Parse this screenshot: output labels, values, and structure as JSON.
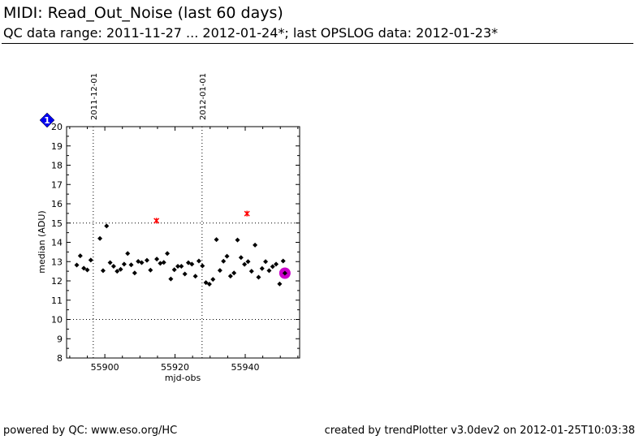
{
  "header": {
    "title": "MIDI: Read_Out_Noise (last 60 days)",
    "subtitle": "QC data range: 2011-11-27 ... 2012-01-24*; last OPSLOG data: 2012-01-23*"
  },
  "footer": {
    "left": "powered by QC: www.eso.org/HC",
    "right": "created by trendPlotter v3.0dev2 on 2012-01-25T10:03:38"
  },
  "colors": {
    "points": "#000000",
    "outliers": "#ff0000",
    "last_point": "#cc00cc",
    "badge": "#0000ee",
    "grid": "#000000"
  },
  "chart_data": {
    "type": "scatter",
    "xlabel": "mjd-obs",
    "ylabel": "median (ADU)",
    "xlim": [
      55889.1,
      55955.5
    ],
    "ylim": [
      8,
      20
    ],
    "xticks": [
      55900,
      55920,
      55940
    ],
    "yticks": [
      8,
      9,
      10,
      11,
      12,
      13,
      14,
      15,
      16,
      17,
      18,
      19,
      20
    ],
    "hlines": [
      10,
      15
    ],
    "date_markers": [
      {
        "label": "2011-12-01",
        "x": 55896.7
      },
      {
        "label": "2012-01-01",
        "x": 55927.7
      }
    ],
    "badge": {
      "label": "1",
      "icon": "diamond-badge-icon"
    },
    "series": [
      {
        "name": "data",
        "marker": "diamond",
        "x": [
          55892.0,
          55893.0,
          55894.0,
          55895.0,
          55896.0,
          55898.6,
          55899.5,
          55900.5,
          55901.5,
          55902.5,
          55903.5,
          55904.5,
          55905.5,
          55906.5,
          55907.5,
          55908.5,
          55909.5,
          55910.5,
          55912.0,
          55913.0,
          55914.8,
          55915.8,
          55916.8,
          55917.8,
          55918.8,
          55919.8,
          55920.8,
          55921.8,
          55922.8,
          55923.8,
          55924.8,
          55925.8,
          55926.8,
          55927.8,
          55928.8,
          55929.8,
          55930.8,
          55931.8,
          55932.8,
          55933.8,
          55934.8,
          55935.8,
          55936.8,
          55937.8,
          55938.8,
          55939.8,
          55940.8,
          55941.8,
          55942.8,
          55943.8,
          55944.8,
          55945.8,
          55946.8,
          55947.8,
          55948.8,
          55949.8,
          55950.8
        ],
        "y": [
          12.82,
          13.3,
          12.66,
          12.57,
          13.08,
          14.2,
          12.53,
          14.85,
          12.95,
          12.76,
          12.5,
          12.6,
          12.87,
          13.42,
          12.83,
          12.41,
          13.01,
          12.95,
          13.07,
          12.56,
          13.13,
          12.91,
          12.96,
          13.42,
          12.1,
          12.58,
          12.76,
          12.76,
          12.36,
          12.94,
          12.87,
          12.24,
          13.03,
          12.78,
          11.91,
          11.83,
          12.08,
          14.14,
          12.54,
          13.02,
          13.28,
          12.25,
          12.41,
          14.12,
          13.21,
          12.86,
          13.0,
          12.5,
          13.86,
          12.19,
          12.64,
          13.0,
          12.53,
          12.74,
          12.87,
          11.84,
          13.03
        ]
      },
      {
        "name": "outliers",
        "marker": "x",
        "x": [
          55914.7,
          55940.5
        ],
        "y": [
          15.12,
          15.49
        ]
      },
      {
        "name": "last",
        "marker": "circle",
        "x": [
          55951.3
        ],
        "y": [
          12.4
        ]
      }
    ]
  }
}
